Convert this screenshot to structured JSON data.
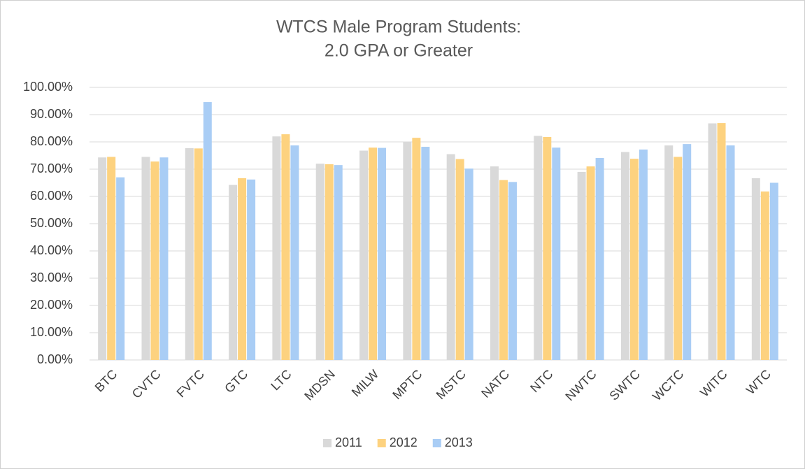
{
  "chart_data": {
    "type": "bar",
    "title": [
      "WTCS Male Program Students:",
      "2.0 GPA or Greater"
    ],
    "categories": [
      "BTC",
      "CVTC",
      "FVTC",
      "GTC",
      "LTC",
      "MDSN",
      "MILW",
      "MPTC",
      "MSTC",
      "NATC",
      "NTC",
      "NWTC",
      "SWTC",
      "WCTC",
      "WITC",
      "WTC"
    ],
    "series": [
      {
        "name": "2011",
        "color": "#d9d9d9",
        "values": [
          74.3,
          74.5,
          77.7,
          64.2,
          82.0,
          72.0,
          76.8,
          80.0,
          75.5,
          71.0,
          82.2,
          69.0,
          76.3,
          78.7,
          86.8,
          66.7
        ]
      },
      {
        "name": "2012",
        "color": "#fdd27f",
        "values": [
          74.5,
          72.8,
          77.6,
          66.7,
          82.8,
          71.8,
          77.9,
          81.5,
          73.7,
          66.0,
          81.8,
          71.0,
          73.8,
          74.5,
          86.9,
          61.8
        ]
      },
      {
        "name": "2013",
        "color": "#a9cdf5",
        "values": [
          67.0,
          74.3,
          94.6,
          66.2,
          78.7,
          71.5,
          77.8,
          78.2,
          70.2,
          65.3,
          77.9,
          74.1,
          77.2,
          79.2,
          78.7,
          65.0
        ]
      }
    ],
    "ylim": [
      0,
      100
    ],
    "yticks": [
      {
        "value": 0,
        "label": "0.00%"
      },
      {
        "value": 10,
        "label": "10.00%"
      },
      {
        "value": 20,
        "label": "20.00%"
      },
      {
        "value": 30,
        "label": "30.00%"
      },
      {
        "value": 40,
        "label": "40.00%"
      },
      {
        "value": 50,
        "label": "50.00%"
      },
      {
        "value": 60,
        "label": "60.00%"
      },
      {
        "value": 70,
        "label": "70.00%"
      },
      {
        "value": 80,
        "label": "80.00%"
      },
      {
        "value": 90,
        "label": "90.00%"
      },
      {
        "value": 100,
        "label": "100.00%"
      }
    ],
    "grid": true,
    "legend": "bottom"
  }
}
